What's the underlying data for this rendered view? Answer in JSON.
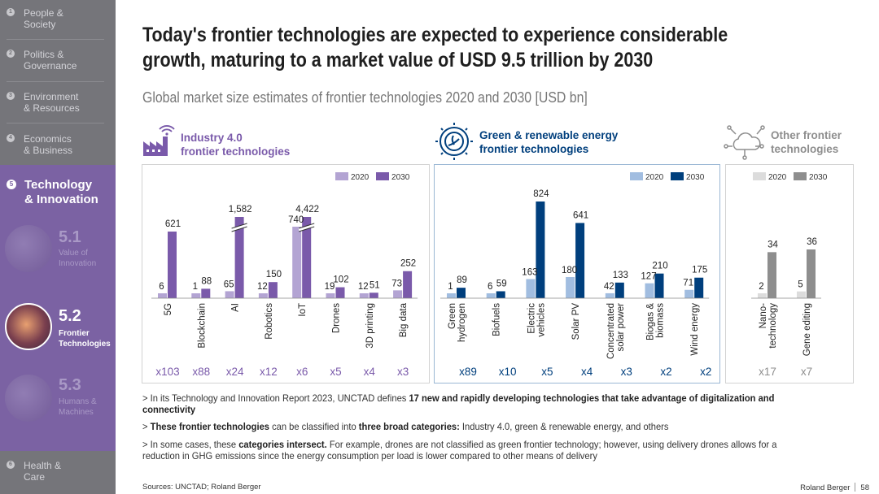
{
  "sidebar": {
    "items": [
      {
        "num": "1",
        "label": "People &\nSociety"
      },
      {
        "num": "2",
        "label": "Politics &\nGovernance"
      },
      {
        "num": "3",
        "label": "Environment\n& Resources"
      },
      {
        "num": "4",
        "label": "Economics\n& Business"
      },
      {
        "num": "6",
        "label": "Health &\nCare"
      }
    ],
    "active_section": {
      "num": "5",
      "label": "Technology\n& Innovation"
    },
    "subsections": [
      {
        "num": "5.1",
        "label": "Value of\nInnovation"
      },
      {
        "num": "5.2",
        "label": "Frontier\nTechnologies"
      },
      {
        "num": "5.3",
        "label": "Humans &\nMachines"
      }
    ]
  },
  "title": "Today's frontier technologies are expected to experience considerable growth, maturing to a market value of USD 9.5 trillion by 2030",
  "subtitle": "Global market size estimates of frontier technologies 2020 and 2030 [USD bn]",
  "categories": [
    {
      "label": "Industry 4.0\nfrontier technologies",
      "icon": "factory-wifi-icon"
    },
    {
      "label": "Green & renewable energy\nfrontier technologies",
      "icon": "gear-plant-icon"
    },
    {
      "label": "Other frontier\ntechnologies",
      "icon": "cloud-network-icon"
    }
  ],
  "legend": {
    "y2020": "2020",
    "y2030": "2030"
  },
  "colors": {
    "industry_2020": "#b3a4d3",
    "industry_2030": "#7a5aaa",
    "green_2020": "#a1bde0",
    "green_2030": "#003f7d",
    "other_2020": "#dcdcdc",
    "other_2030": "#8e8e8e",
    "sidebar": "#75757a",
    "tech_block": "#7b62a3"
  },
  "chart_data": [
    {
      "type": "bar",
      "title": "Industry 4.0 frontier technologies",
      "categories": [
        "5G",
        "Blockchain",
        "AI",
        "Robotics",
        "IoT",
        "Drones",
        "3D printing",
        "Big data"
      ],
      "series": [
        {
          "name": "2020",
          "values": [
            6,
            1,
            65,
            12,
            740,
            19,
            12,
            73
          ]
        },
        {
          "name": "2030",
          "values": [
            621,
            88,
            1582,
            150,
            4422,
            102,
            51,
            252
          ]
        }
      ],
      "value_labels_2020": [
        "6",
        "1",
        "65",
        "12",
        "740",
        "19",
        "12",
        "73"
      ],
      "value_labels_2030": [
        "621",
        "88",
        "1,582",
        "150",
        "4,422",
        "102",
        "51",
        "252"
      ],
      "broken_axis": [
        "AI",
        "IoT"
      ],
      "multipliers": [
        "x103",
        "x88",
        "x24",
        "x12",
        "x6",
        "x5",
        "x4",
        "x3"
      ]
    },
    {
      "type": "bar",
      "title": "Green & renewable energy frontier technologies",
      "categories": [
        "Green hydrogen",
        "Biofuels",
        "Electric vehicles",
        "Solar PV",
        "Concentrated solar power",
        "Biogas & biomass",
        "Wind energy"
      ],
      "series": [
        {
          "name": "2020",
          "values": [
            1,
            6,
            163,
            180,
            42,
            127,
            71
          ]
        },
        {
          "name": "2030",
          "values": [
            89,
            59,
            824,
            641,
            133,
            210,
            175
          ]
        }
      ],
      "value_labels_2020": [
        "1",
        "6",
        "163",
        "180",
        "42",
        "127",
        "71"
      ],
      "value_labels_2030": [
        "89",
        "59",
        "824",
        "641",
        "133",
        "210",
        "175"
      ],
      "multipliers": [
        "x89",
        "x10",
        "x5",
        "x4",
        "x3",
        "x2",
        "x2"
      ]
    },
    {
      "type": "bar",
      "title": "Other frontier technologies",
      "categories": [
        "Nano-technology",
        "Gene editing"
      ],
      "series": [
        {
          "name": "2020",
          "values": [
            2,
            5
          ]
        },
        {
          "name": "2030",
          "values": [
            34,
            36
          ]
        }
      ],
      "value_labels_2020": [
        "2",
        "5"
      ],
      "value_labels_2030": [
        "34",
        "36"
      ],
      "multipliers": [
        "x17",
        "x7"
      ]
    }
  ],
  "bullets": [
    {
      "pre": "In its Technology and Innovation Report 2023, UNCTAD defines ",
      "bold": "17 new and rapidly developing technologies that take advantage of digitalization and connectivity",
      "post": ""
    },
    {
      "pre": "",
      "bold": "These frontier technologies",
      "mid": " can be classified into ",
      "bold2": "three broad categories:",
      "post": " Industry 4.0, green & renewable energy, and others"
    },
    {
      "pre": "In some cases, these ",
      "bold": "categories intersect.",
      "post": " For example, drones are not classified as green frontier technology; however, using delivery drones allows for a reduction in GHG emissions since the energy consumption per load is lower compared to other means of delivery"
    }
  ],
  "bullet_marker": ">",
  "sources": "Sources: UNCTAD; Roland Berger",
  "footer": {
    "brand": "Roland Berger",
    "page": "58"
  }
}
